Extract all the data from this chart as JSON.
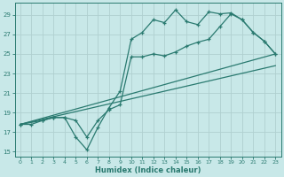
{
  "xlabel": "Humidex (Indice chaleur)",
  "xlim": [
    -0.5,
    23.5
  ],
  "ylim": [
    14.5,
    30.2
  ],
  "xticks": [
    0,
    1,
    2,
    3,
    4,
    5,
    6,
    7,
    8,
    9,
    10,
    11,
    12,
    13,
    14,
    15,
    16,
    17,
    18,
    19,
    20,
    21,
    22,
    23
  ],
  "yticks": [
    15,
    17,
    19,
    21,
    23,
    25,
    27,
    29
  ],
  "bg_color": "#c8e8e8",
  "grid_color": "#b0d0d0",
  "line_color": "#2a7a70",
  "line1_x": [
    0,
    1,
    2,
    3,
    4,
    5,
    6,
    7,
    8,
    9,
    10,
    11,
    12,
    13,
    14,
    15,
    16,
    17,
    18,
    19,
    20,
    21,
    22,
    23
  ],
  "line1_y": [
    17.8,
    17.8,
    18.2,
    18.5,
    18.5,
    16.5,
    15.2,
    17.5,
    19.5,
    21.2,
    26.5,
    27.2,
    28.5,
    28.2,
    29.5,
    28.3,
    28.0,
    29.3,
    29.1,
    29.2,
    28.5,
    27.2,
    26.3,
    25.0
  ],
  "line2_x": [
    0,
    2,
    3,
    4,
    5,
    6,
    7,
    8,
    9,
    10,
    11,
    12,
    13,
    14,
    15,
    16,
    17,
    18,
    19,
    20,
    21,
    22,
    23
  ],
  "line2_y": [
    17.8,
    18.2,
    18.5,
    18.5,
    18.2,
    16.5,
    18.2,
    19.3,
    19.8,
    24.7,
    24.7,
    25.0,
    24.8,
    25.2,
    25.8,
    26.2,
    26.5,
    27.8,
    29.1,
    28.5,
    27.2,
    26.3,
    25.0
  ],
  "line3_x": [
    0,
    23
  ],
  "line3_y": [
    17.8,
    25.0
  ],
  "line4_x": [
    0,
    23
  ],
  "line4_y": [
    17.8,
    23.8
  ]
}
